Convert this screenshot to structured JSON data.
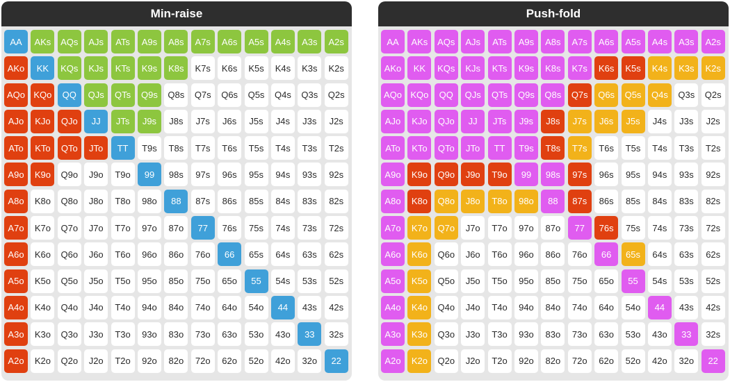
{
  "panels": [
    {
      "id": "min-raise",
      "title": "Min-raise"
    },
    {
      "id": "push-fold",
      "title": "Push-fold"
    }
  ],
  "colors": {
    "green": "#8dc63f",
    "blue": "#3fa0d9",
    "red": "#e04010",
    "magenta": "#e05cf0",
    "orange": "#f2b21a",
    "white": "#ffffff",
    "header": "#2e2e2e"
  },
  "hands": [
    [
      "AA",
      "AKs",
      "AQs",
      "AJs",
      "ATs",
      "A9s",
      "A8s",
      "A7s",
      "A6s",
      "A5s",
      "A4s",
      "A3s",
      "A2s"
    ],
    [
      "AKo",
      "KK",
      "KQs",
      "KJs",
      "KTs",
      "K9s",
      "K8s",
      "K7s",
      "K6s",
      "K5s",
      "K4s",
      "K3s",
      "K2s"
    ],
    [
      "AQo",
      "KQo",
      "QQ",
      "QJs",
      "QTs",
      "Q9s",
      "Q8s",
      "Q7s",
      "Q6s",
      "Q5s",
      "Q4s",
      "Q3s",
      "Q2s"
    ],
    [
      "AJo",
      "KJo",
      "QJo",
      "JJ",
      "JTs",
      "J9s",
      "J8s",
      "J7s",
      "J6s",
      "J5s",
      "J4s",
      "J3s",
      "J2s"
    ],
    [
      "ATo",
      "KTo",
      "QTo",
      "JTo",
      "TT",
      "T9s",
      "T8s",
      "T7s",
      "T6s",
      "T5s",
      "T4s",
      "T3s",
      "T2s"
    ],
    [
      "A9o",
      "K9o",
      "Q9o",
      "J9o",
      "T9o",
      "99",
      "98s",
      "97s",
      "96s",
      "95s",
      "94s",
      "93s",
      "92s"
    ],
    [
      "A8o",
      "K8o",
      "Q8o",
      "J8o",
      "T8o",
      "98o",
      "88",
      "87s",
      "86s",
      "85s",
      "84s",
      "83s",
      "82s"
    ],
    [
      "A7o",
      "K7o",
      "Q7o",
      "J7o",
      "T7o",
      "97o",
      "87o",
      "77",
      "76s",
      "75s",
      "74s",
      "73s",
      "72s"
    ],
    [
      "A6o",
      "K6o",
      "Q6o",
      "J6o",
      "T6o",
      "96o",
      "86o",
      "76o",
      "66",
      "65s",
      "64s",
      "63s",
      "62s"
    ],
    [
      "A5o",
      "K5o",
      "Q5o",
      "J5o",
      "T5o",
      "95o",
      "85o",
      "75o",
      "65o",
      "55",
      "54s",
      "53s",
      "52s"
    ],
    [
      "A4o",
      "K4o",
      "Q4o",
      "J4o",
      "T4o",
      "94o",
      "84o",
      "74o",
      "64o",
      "54o",
      "44",
      "43s",
      "42s"
    ],
    [
      "A3o",
      "K3o",
      "Q3o",
      "J3o",
      "T3o",
      "93o",
      "83o",
      "73o",
      "63o",
      "53o",
      "43o",
      "33",
      "32s"
    ],
    [
      "A2o",
      "K2o",
      "Q2o",
      "J2o",
      "T2o",
      "92o",
      "82o",
      "72o",
      "62o",
      "52o",
      "42o",
      "32o",
      "22"
    ]
  ],
  "min_raise_colors": [
    [
      "blue",
      "green",
      "green",
      "green",
      "green",
      "green",
      "green",
      "green",
      "green",
      "green",
      "green",
      "green",
      "green"
    ],
    [
      "red",
      "blue",
      "green",
      "green",
      "green",
      "green",
      "green",
      "white",
      "white",
      "white",
      "white",
      "white",
      "white"
    ],
    [
      "red",
      "red",
      "blue",
      "green",
      "green",
      "green",
      "white",
      "white",
      "white",
      "white",
      "white",
      "white",
      "white"
    ],
    [
      "red",
      "red",
      "red",
      "blue",
      "green",
      "green",
      "white",
      "white",
      "white",
      "white",
      "white",
      "white",
      "white"
    ],
    [
      "red",
      "red",
      "red",
      "red",
      "blue",
      "white",
      "white",
      "white",
      "white",
      "white",
      "white",
      "white",
      "white"
    ],
    [
      "red",
      "red",
      "white",
      "white",
      "white",
      "blue",
      "white",
      "white",
      "white",
      "white",
      "white",
      "white",
      "white"
    ],
    [
      "red",
      "white",
      "white",
      "white",
      "white",
      "white",
      "blue",
      "white",
      "white",
      "white",
      "white",
      "white",
      "white"
    ],
    [
      "red",
      "white",
      "white",
      "white",
      "white",
      "white",
      "white",
      "blue",
      "white",
      "white",
      "white",
      "white",
      "white"
    ],
    [
      "red",
      "white",
      "white",
      "white",
      "white",
      "white",
      "white",
      "white",
      "blue",
      "white",
      "white",
      "white",
      "white"
    ],
    [
      "red",
      "white",
      "white",
      "white",
      "white",
      "white",
      "white",
      "white",
      "white",
      "blue",
      "white",
      "white",
      "white"
    ],
    [
      "red",
      "white",
      "white",
      "white",
      "white",
      "white",
      "white",
      "white",
      "white",
      "white",
      "blue",
      "white",
      "white"
    ],
    [
      "red",
      "white",
      "white",
      "white",
      "white",
      "white",
      "white",
      "white",
      "white",
      "white",
      "white",
      "blue",
      "white"
    ],
    [
      "red",
      "white",
      "white",
      "white",
      "white",
      "white",
      "white",
      "white",
      "white",
      "white",
      "white",
      "white",
      "blue"
    ]
  ],
  "push_fold_colors": [
    [
      "magenta",
      "magenta",
      "magenta",
      "magenta",
      "magenta",
      "magenta",
      "magenta",
      "magenta",
      "magenta",
      "magenta",
      "magenta",
      "magenta",
      "magenta"
    ],
    [
      "magenta",
      "magenta",
      "magenta",
      "magenta",
      "magenta",
      "magenta",
      "magenta",
      "magenta",
      "red",
      "red",
      "orange",
      "orange",
      "orange"
    ],
    [
      "magenta",
      "magenta",
      "magenta",
      "magenta",
      "magenta",
      "magenta",
      "magenta",
      "red",
      "orange",
      "orange",
      "orange",
      "white",
      "white"
    ],
    [
      "magenta",
      "magenta",
      "magenta",
      "magenta",
      "magenta",
      "magenta",
      "red",
      "orange",
      "orange",
      "orange",
      "white",
      "white",
      "white"
    ],
    [
      "magenta",
      "magenta",
      "magenta",
      "magenta",
      "magenta",
      "magenta",
      "red",
      "orange",
      "white",
      "white",
      "white",
      "white",
      "white"
    ],
    [
      "magenta",
      "red",
      "red",
      "red",
      "red",
      "magenta",
      "magenta",
      "red",
      "white",
      "white",
      "white",
      "white",
      "white"
    ],
    [
      "magenta",
      "red",
      "orange",
      "orange",
      "orange",
      "orange",
      "magenta",
      "red",
      "white",
      "white",
      "white",
      "white",
      "white"
    ],
    [
      "magenta",
      "orange",
      "orange",
      "white",
      "white",
      "white",
      "white",
      "magenta",
      "red",
      "white",
      "white",
      "white",
      "white"
    ],
    [
      "magenta",
      "orange",
      "white",
      "white",
      "white",
      "white",
      "white",
      "white",
      "magenta",
      "orange",
      "white",
      "white",
      "white"
    ],
    [
      "magenta",
      "orange",
      "white",
      "white",
      "white",
      "white",
      "white",
      "white",
      "white",
      "magenta",
      "white",
      "white",
      "white"
    ],
    [
      "magenta",
      "orange",
      "white",
      "white",
      "white",
      "white",
      "white",
      "white",
      "white",
      "white",
      "magenta",
      "white",
      "white"
    ],
    [
      "magenta",
      "orange",
      "white",
      "white",
      "white",
      "white",
      "white",
      "white",
      "white",
      "white",
      "white",
      "magenta",
      "white"
    ],
    [
      "magenta",
      "orange",
      "white",
      "white",
      "white",
      "white",
      "white",
      "white",
      "white",
      "white",
      "white",
      "white",
      "magenta"
    ]
  ]
}
